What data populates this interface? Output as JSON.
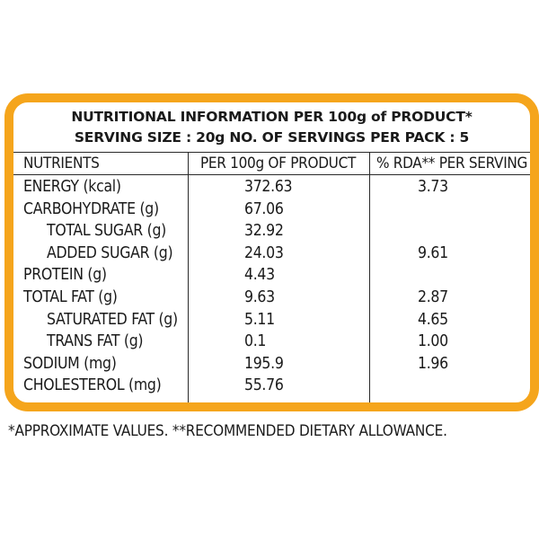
{
  "label": {
    "title_line1": "NUTRITIONAL INFORMATION PER 100g of PRODUCT*",
    "title_line2": "SERVING SIZE : 20g  NO. OF SERVINGS PER PACK : 5",
    "columns": {
      "nutrients": "NUTRIENTS",
      "per_100g": "PER 100g OF PRODUCT",
      "rda": "% RDA** PER SERVING"
    },
    "rows": [
      {
        "name": "ENERGY (kcal)",
        "value": "372.63",
        "rda": "3.73"
      },
      {
        "name": "CARBOHYDRATE (g)",
        "value": "67.06",
        "rda": ""
      },
      {
        "name": "TOTAL SUGAR (g)",
        "value": "32.92",
        "rda": ""
      },
      {
        "name": "ADDED SUGAR (g)",
        "value": "24.03",
        "rda": "9.61"
      },
      {
        "name": "PROTEIN (g)",
        "value": "4.43",
        "rda": ""
      },
      {
        "name": "TOTAL FAT (g)",
        "value": "9.63",
        "rda": "2.87"
      },
      {
        "name": "SATURATED FAT (g)",
        "value": "5.11",
        "rda": "4.65"
      },
      {
        "name": "TRANS FAT (g)",
        "value": "0.1",
        "rda": "1.00"
      },
      {
        "name": "SODIUM (mg)",
        "value": "195.9",
        "rda": "1.96"
      },
      {
        "name": "CHOLESTEROL (mg)",
        "value": "55.76",
        "rda": ""
      }
    ]
  },
  "footnote": "*APPROXIMATE VALUES.  **RECOMMENDED DIETARY ALLOWANCE.",
  "colors": {
    "border": "#f5a51c",
    "text": "#1a1a1a",
    "rules": "#2a2a2a"
  }
}
